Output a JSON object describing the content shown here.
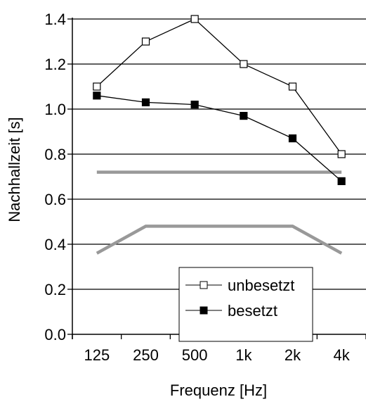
{
  "chart_data": {
    "type": "line",
    "title": "",
    "xlabel": "Frequenz [Hz]",
    "ylabel": "Nachhallzeit [s]",
    "categories": [
      "125",
      "250",
      "500",
      "1k",
      "2k",
      "4k"
    ],
    "ylim": [
      0,
      1.4
    ],
    "yticks": [
      "0.0",
      "0.2",
      "0.4",
      "0.6",
      "0.8",
      "1.0",
      "1.2",
      "1.4"
    ],
    "grid": "horizontal",
    "legend_position": "bottom-right",
    "series": [
      {
        "name": "unbesetzt",
        "values": [
          1.1,
          1.3,
          1.4,
          1.2,
          1.1,
          0.8
        ],
        "marker": "open-square",
        "color": "#000000"
      },
      {
        "name": "besetzt",
        "values": [
          1.06,
          1.03,
          1.02,
          0.97,
          0.87,
          0.68
        ],
        "marker": "filled-square",
        "color": "#000000"
      }
    ],
    "tolerance_lines": [
      {
        "values": [
          0.72,
          0.72,
          0.72,
          0.72,
          0.72,
          0.72
        ],
        "color": "#999999"
      },
      {
        "values": [
          0.36,
          0.48,
          0.48,
          0.48,
          0.48,
          0.36
        ],
        "color": "#999999"
      }
    ]
  }
}
